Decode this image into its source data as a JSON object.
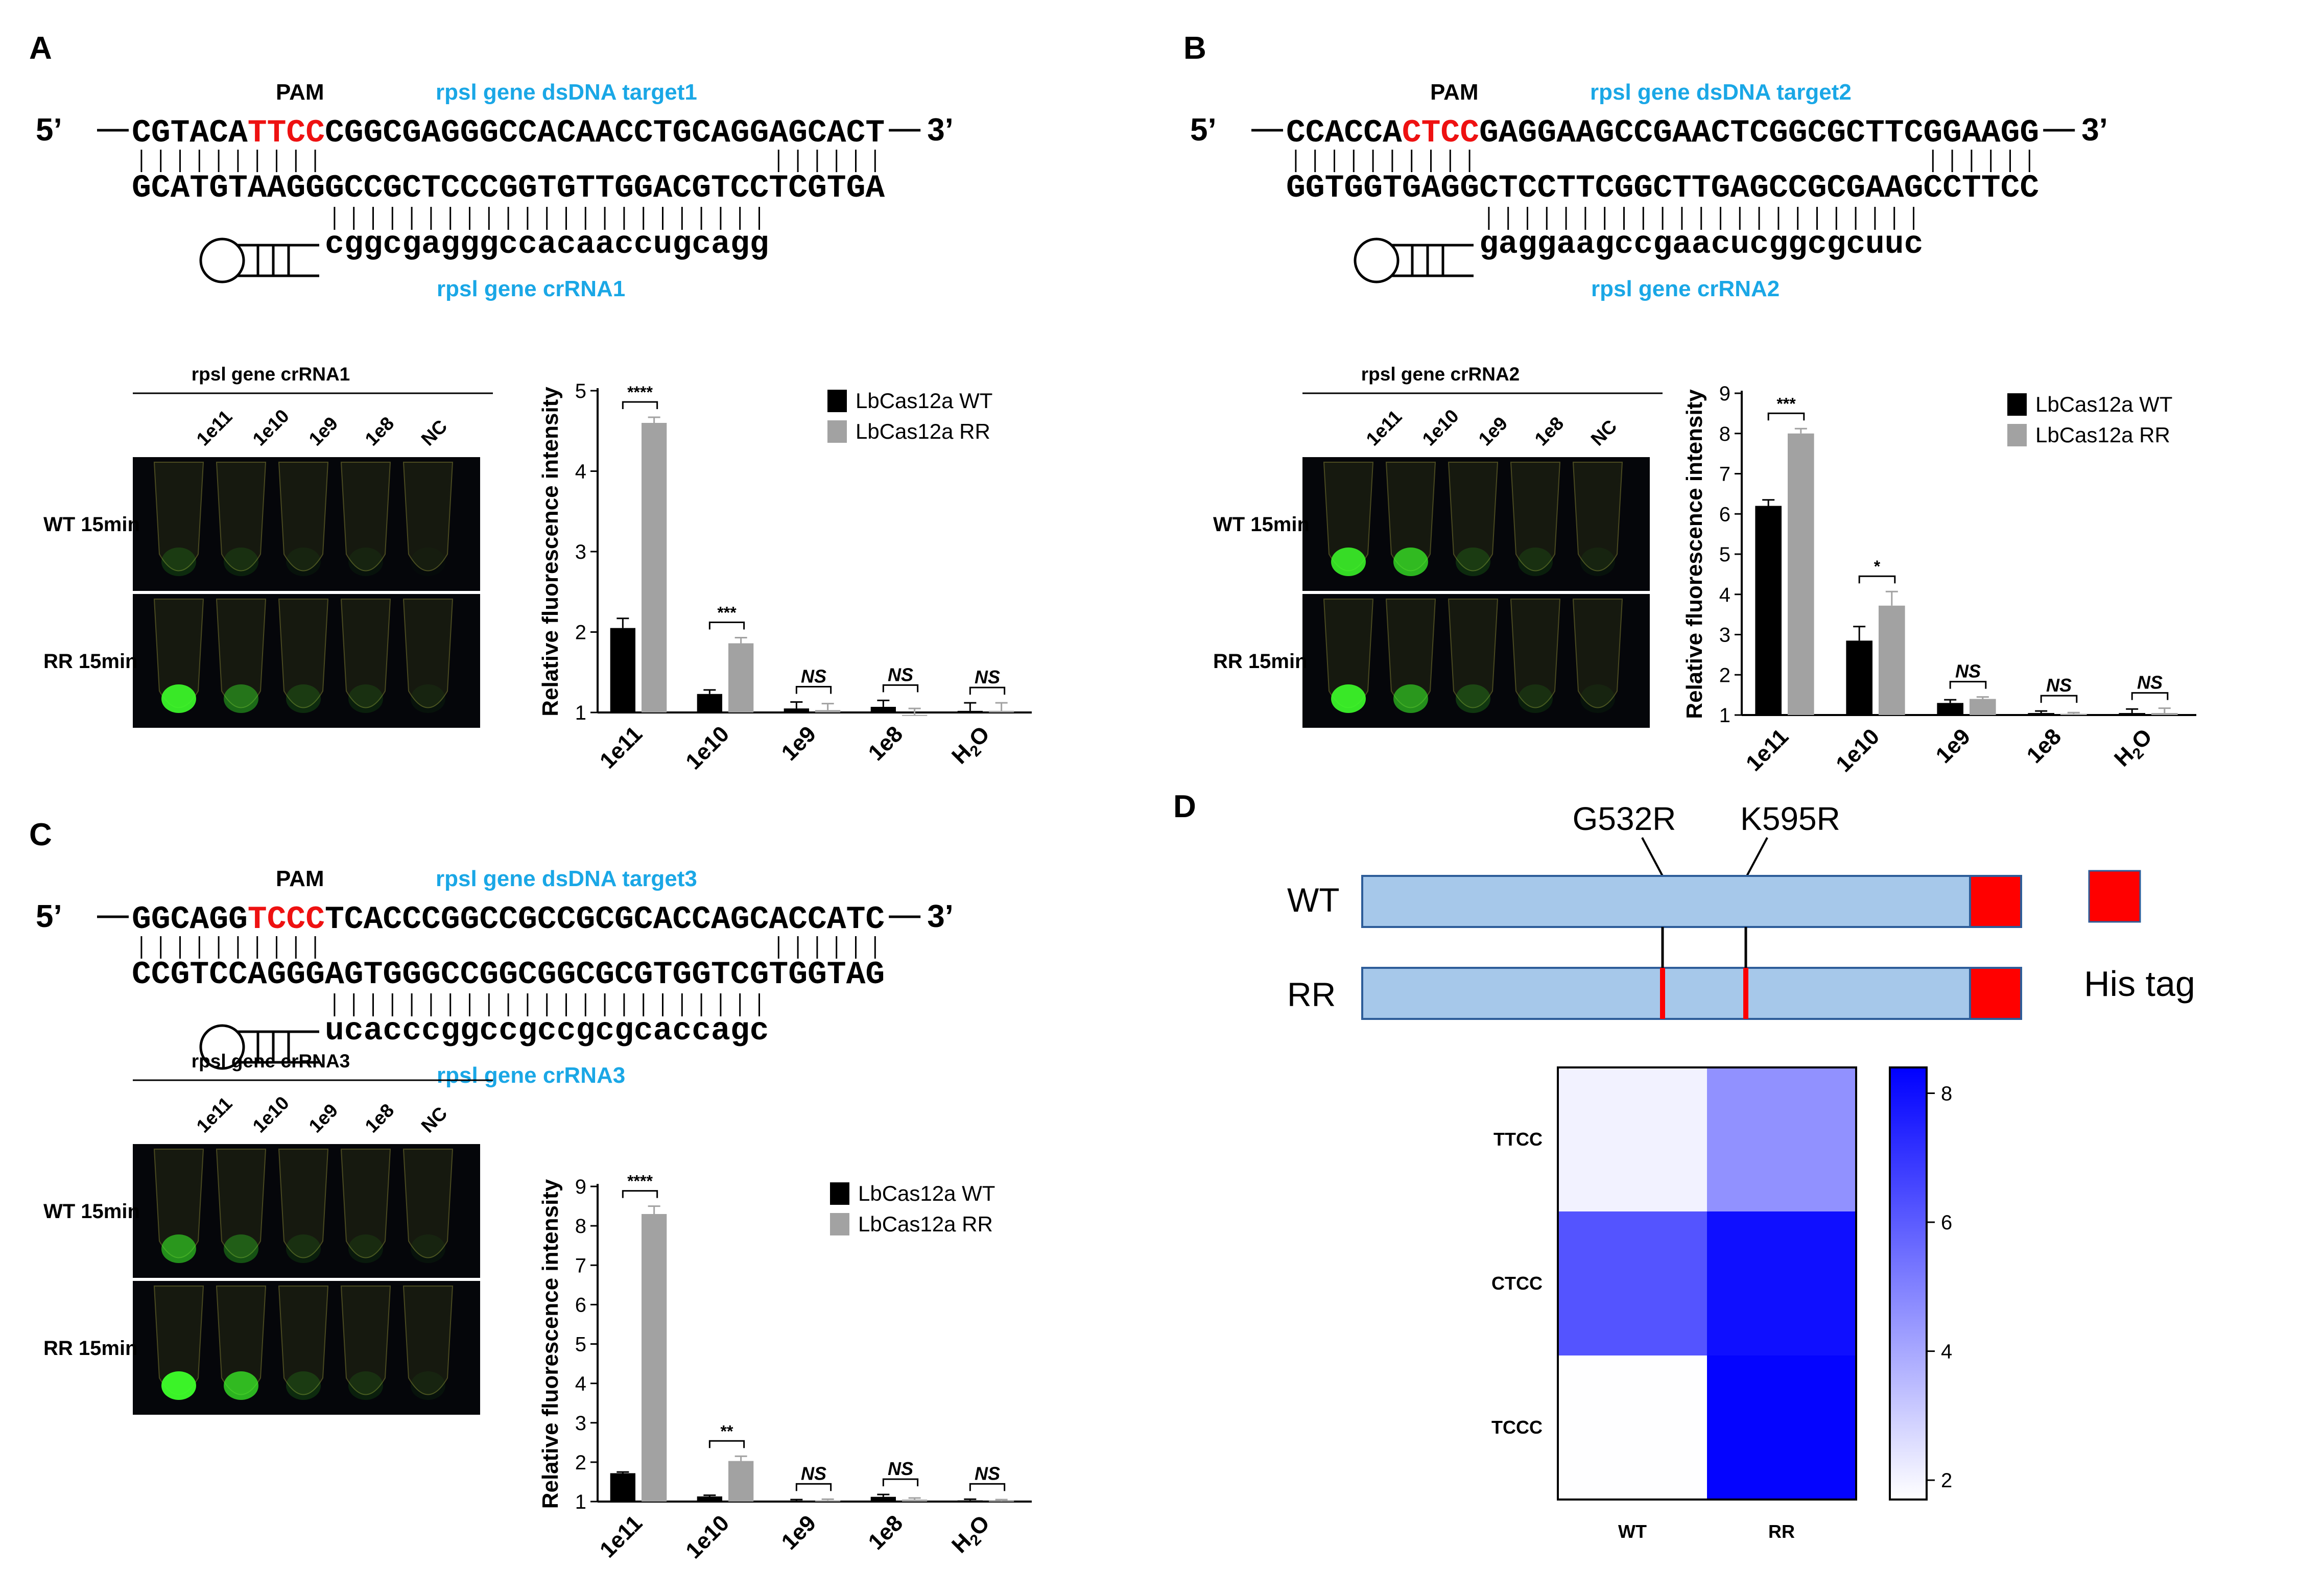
{
  "panels": {
    "A": {
      "letter": "A",
      "pam_label": "PAM",
      "target_label": "rpsl  gene dsDNA target1",
      "crrna_label": "rpsl gene crRNA1",
      "prime5": "5’",
      "prime3": "3’",
      "top_pre": "CGTACA",
      "top_pam": "TTCC",
      "top_post": "CGGCGAGGGCCACAACCTGCAGGAGCACT",
      "bottom": "GCATGTAAGGGCCGCTCCCGGTGTTGGACGTCCTCGTGA",
      "crrna_seq": "cggcgagggccacaaccugcagg",
      "gel_title": "rpsl gene crRNA1",
      "lanes": [
        "1e11",
        "1e10",
        "1e9",
        "1e8",
        "NC"
      ],
      "row_labels": [
        "WT 15min",
        "RR 15min"
      ]
    },
    "B": {
      "letter": "B",
      "pam_label": "PAM",
      "target_label": "rpsl gene dsDNA target2",
      "crrna_label": "rpsl gene crRNA2",
      "prime5": "5’",
      "prime3": "3’",
      "top_pre": "CCACCA",
      "top_pam": "CTCC",
      "top_post": "GAGGAAGCCGAACTCGGCGCTTCGGAAGG",
      "bottom": "GGTGGTGAGGCTCCTTCGGCTTGAGCCGCGAAGCCTTCC",
      "crrna_seq": "gaggaagccgaacucggcgcuuc",
      "gel_title": "rpsl gene crRNA2",
      "lanes": [
        "1e11",
        "1e10",
        "1e9",
        "1e8",
        "NC"
      ],
      "row_labels": [
        "WT 15min",
        "RR 15min"
      ]
    },
    "C": {
      "letter": "C",
      "pam_label": "PAM",
      "target_label": "rpsl gene dsDNA target3",
      "crrna_label": "rpsl gene crRNA3",
      "prime5": "5’",
      "prime3": "3’",
      "top_pre": "GGCAGG",
      "top_pam": "TCCC",
      "top_post": "TCACCCGGCCGCCGCGCACCAGCACCATC",
      "bottom": "CCGTCCAGGGAGTGGGCCGGCGGCGCGTGGTCGTGGTAG",
      "crrna_seq": "ucacccggccgccgcgcaccagc",
      "gel_title": "rpsl gene crRNA3",
      "lanes": [
        "1e11",
        "1e10",
        "1e9",
        "1e8",
        "NC"
      ],
      "row_labels": [
        "WT 15min",
        "RR 15min"
      ]
    },
    "D": {
      "letter": "D",
      "mutations": [
        "G532R",
        "K595R"
      ],
      "rows": [
        "WT",
        "RR"
      ],
      "his_tag": "His tag"
    }
  },
  "colors": {
    "pam_red": "#ee1111",
    "cyan_label": "#1aa7e6",
    "wt_bar": "#000000",
    "rr_bar": "#a2a2a2",
    "protein_fill": "#a6c8ea",
    "protein_edge": "#2e5d99",
    "tag_red": "#ff0000"
  },
  "chart_data": [
    {
      "type": "bar",
      "panel": "A",
      "categories": [
        "1e11",
        "1e10",
        "1e9",
        "1e8",
        "H2O"
      ],
      "series": [
        {
          "name": "LbCas12a WT",
          "values": [
            2.05,
            1.23,
            1.05,
            1.07,
            1.02
          ],
          "errors": [
            0.12,
            0.05,
            0.08,
            0.08,
            0.1
          ]
        },
        {
          "name": "LbCas12a RR",
          "values": [
            4.6,
            1.86,
            1.03,
            0.97,
            1.02
          ],
          "errors": [
            0.07,
            0.07,
            0.08,
            0.08,
            0.1
          ]
        }
      ],
      "significance": [
        "****",
        "***",
        "NS",
        "NS",
        "NS"
      ],
      "ylabel": "Relative fluorescence intensity",
      "ylim": [
        1,
        5
      ],
      "yticks": [
        1,
        2,
        3,
        4,
        5
      ]
    },
    {
      "type": "bar",
      "panel": "B",
      "categories": [
        "1e11",
        "1e10",
        "1e9",
        "1e8",
        "H2O"
      ],
      "series": [
        {
          "name": "LbCas12a WT",
          "values": [
            6.2,
            2.85,
            1.3,
            1.05,
            1.05
          ],
          "errors": [
            0.15,
            0.35,
            0.08,
            0.05,
            0.1
          ]
        },
        {
          "name": "LbCas12a RR",
          "values": [
            8.0,
            3.72,
            1.4,
            1.03,
            1.05
          ],
          "errors": [
            0.12,
            0.35,
            0.05,
            0.03,
            0.12
          ]
        }
      ],
      "significance": [
        "***",
        "*",
        "NS",
        "NS",
        "NS"
      ],
      "ylabel": "Relative fluorescence intensity",
      "ylim": [
        1,
        9
      ],
      "yticks": [
        1,
        2,
        3,
        4,
        5,
        6,
        7,
        8,
        9
      ]
    },
    {
      "type": "bar",
      "panel": "C",
      "categories": [
        "1e11",
        "1e10",
        "1e9",
        "1e8",
        "H2O"
      ],
      "series": [
        {
          "name": "LbCas12a WT",
          "values": [
            1.72,
            1.13,
            1.02,
            1.12,
            1.03
          ],
          "errors": [
            0.03,
            0.03,
            0.03,
            0.06,
            0.03
          ]
        },
        {
          "name": "LbCas12a RR",
          "values": [
            8.3,
            2.03,
            1.03,
            1.05,
            1.02
          ],
          "errors": [
            0.2,
            0.12,
            0.03,
            0.04,
            0.03
          ]
        }
      ],
      "significance": [
        "****",
        "**",
        "NS",
        "NS",
        "NS"
      ],
      "ylabel": "Relative fluorescence intensity",
      "ylim": [
        1,
        9
      ],
      "yticks": [
        1,
        2,
        3,
        4,
        5,
        6,
        7,
        8,
        9
      ]
    },
    {
      "type": "heatmap",
      "panel": "D",
      "x": [
        "WT",
        "RR"
      ],
      "y": [
        "TTCC",
        "CTCC",
        "TCCC"
      ],
      "values": [
        [
          2.05,
          4.6
        ],
        [
          6.2,
          8.0
        ],
        [
          1.72,
          8.3
        ]
      ],
      "colorbar_ticks": [
        2,
        4,
        6,
        8
      ],
      "colorbar_range": [
        1.7,
        8.4
      ],
      "color_low": "#ffffff",
      "color_high": "#0000ff"
    }
  ]
}
